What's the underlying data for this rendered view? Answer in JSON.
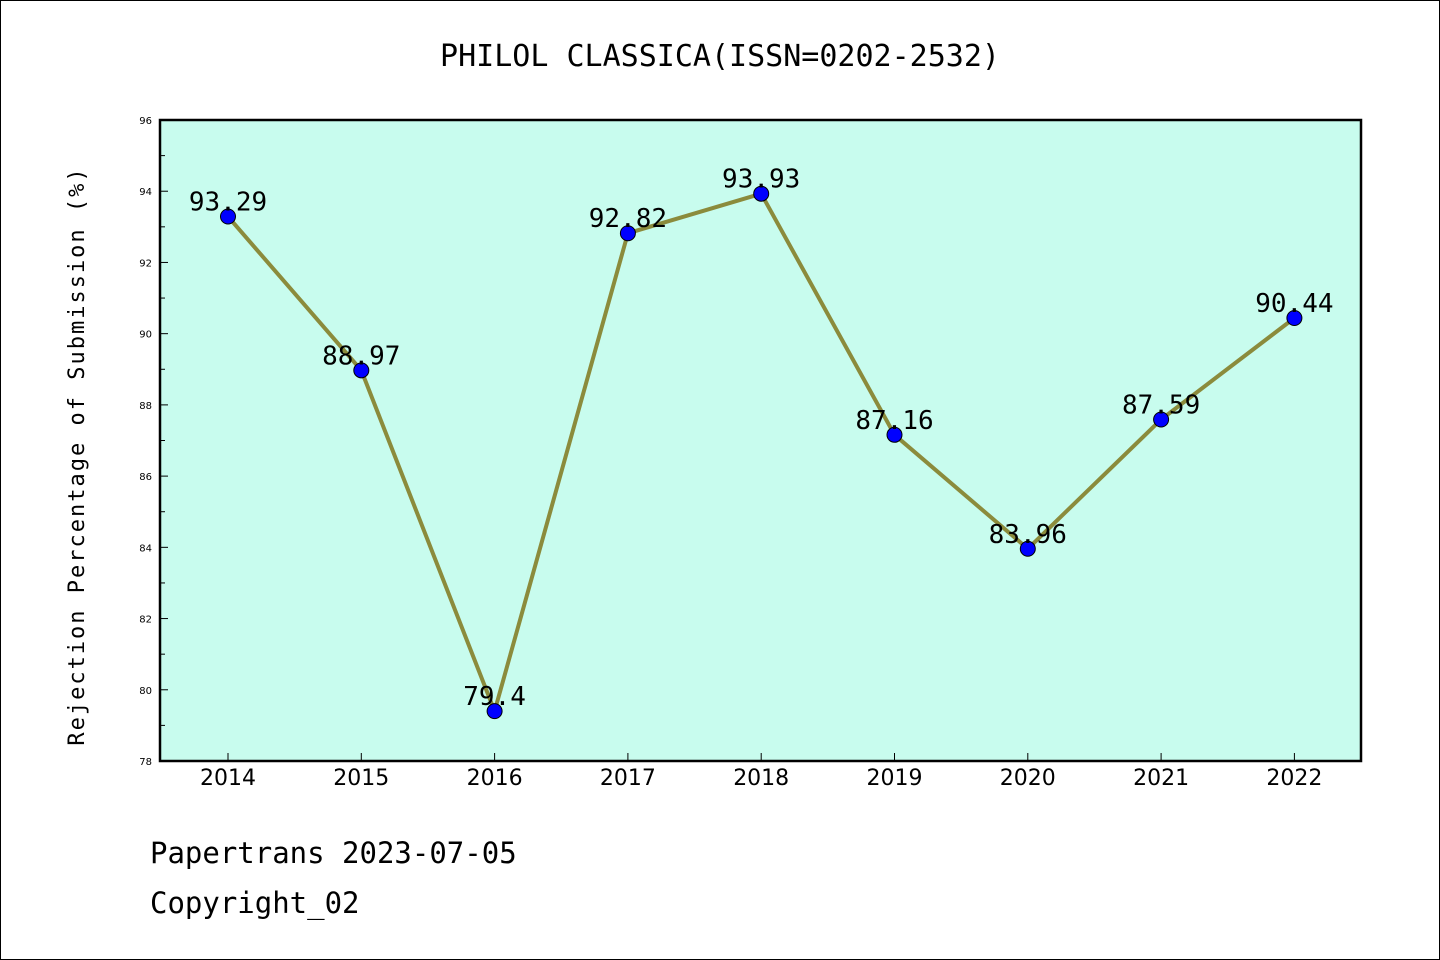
{
  "footer": {
    "line1": "Papertrans 2023-07-05",
    "line2": "Copyright_02"
  },
  "colors": {
    "plot_background": "#c8fcee",
    "line": "#8b8b3c",
    "marker": "#0000ff"
  },
  "chart_data": {
    "type": "line",
    "title": "PHILOL CLASSICA(ISSN=0202-2532)",
    "xlabel": "",
    "ylabel": "Rejection Percentage of Submission (%)",
    "categories": [
      "2014",
      "2015",
      "2016",
      "2017",
      "2018",
      "2019",
      "2020",
      "2021",
      "2022"
    ],
    "series": [
      {
        "values": [
          93.29,
          88.97,
          79.4,
          92.82,
          93.93,
          87.16,
          83.96,
          87.59,
          90.44
        ],
        "labels": [
          "93.29",
          "88.97",
          "79.4",
          "92.82",
          "93.93",
          "87.16",
          "83.96",
          "87.59",
          "90.44"
        ]
      }
    ],
    "ylim": [
      78,
      96
    ],
    "yticks": [
      "78",
      "80",
      "82",
      "84",
      "86",
      "88",
      "90",
      "92",
      "94",
      "96"
    ],
    "grid": false,
    "legend": "none"
  }
}
